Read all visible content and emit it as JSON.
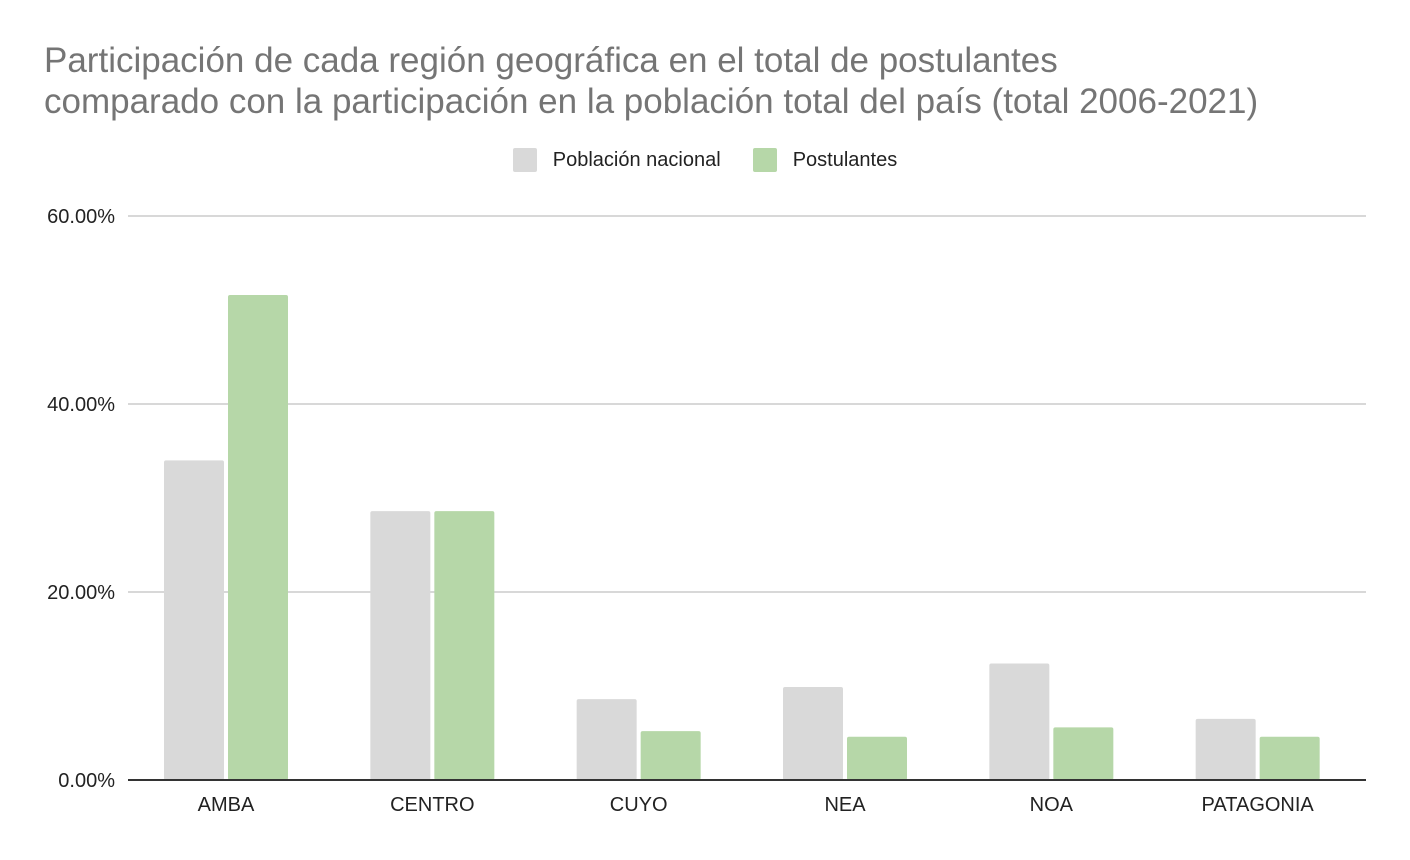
{
  "chart_data": {
    "type": "bar",
    "title": {
      "line1": "Participación de cada región geográfica en el total de postulantes",
      "line2": "comparado con la participación en la población total del país (total 2006-2021)"
    },
    "xlabel": "",
    "ylabel": "",
    "categories": [
      "AMBA",
      "CENTRO",
      "CUYO",
      "NEA",
      "NOA",
      "PATAGONIA"
    ],
    "series": [
      {
        "name": "Población nacional",
        "color": "#d9d9d9",
        "values": [
          34.0,
          28.6,
          8.6,
          9.9,
          12.4,
          6.5
        ]
      },
      {
        "name": "Postulantes",
        "color": "#b6d7a8",
        "values": [
          51.6,
          28.6,
          5.2,
          4.6,
          5.6,
          4.6
        ]
      }
    ],
    "ylim": [
      0,
      60
    ],
    "yticks": [
      0,
      20,
      40,
      60
    ],
    "ytick_labels": [
      "0.00%",
      "20.00%",
      "40.00%",
      "60.00%"
    ],
    "grid": true,
    "legend_position": "top-center"
  }
}
